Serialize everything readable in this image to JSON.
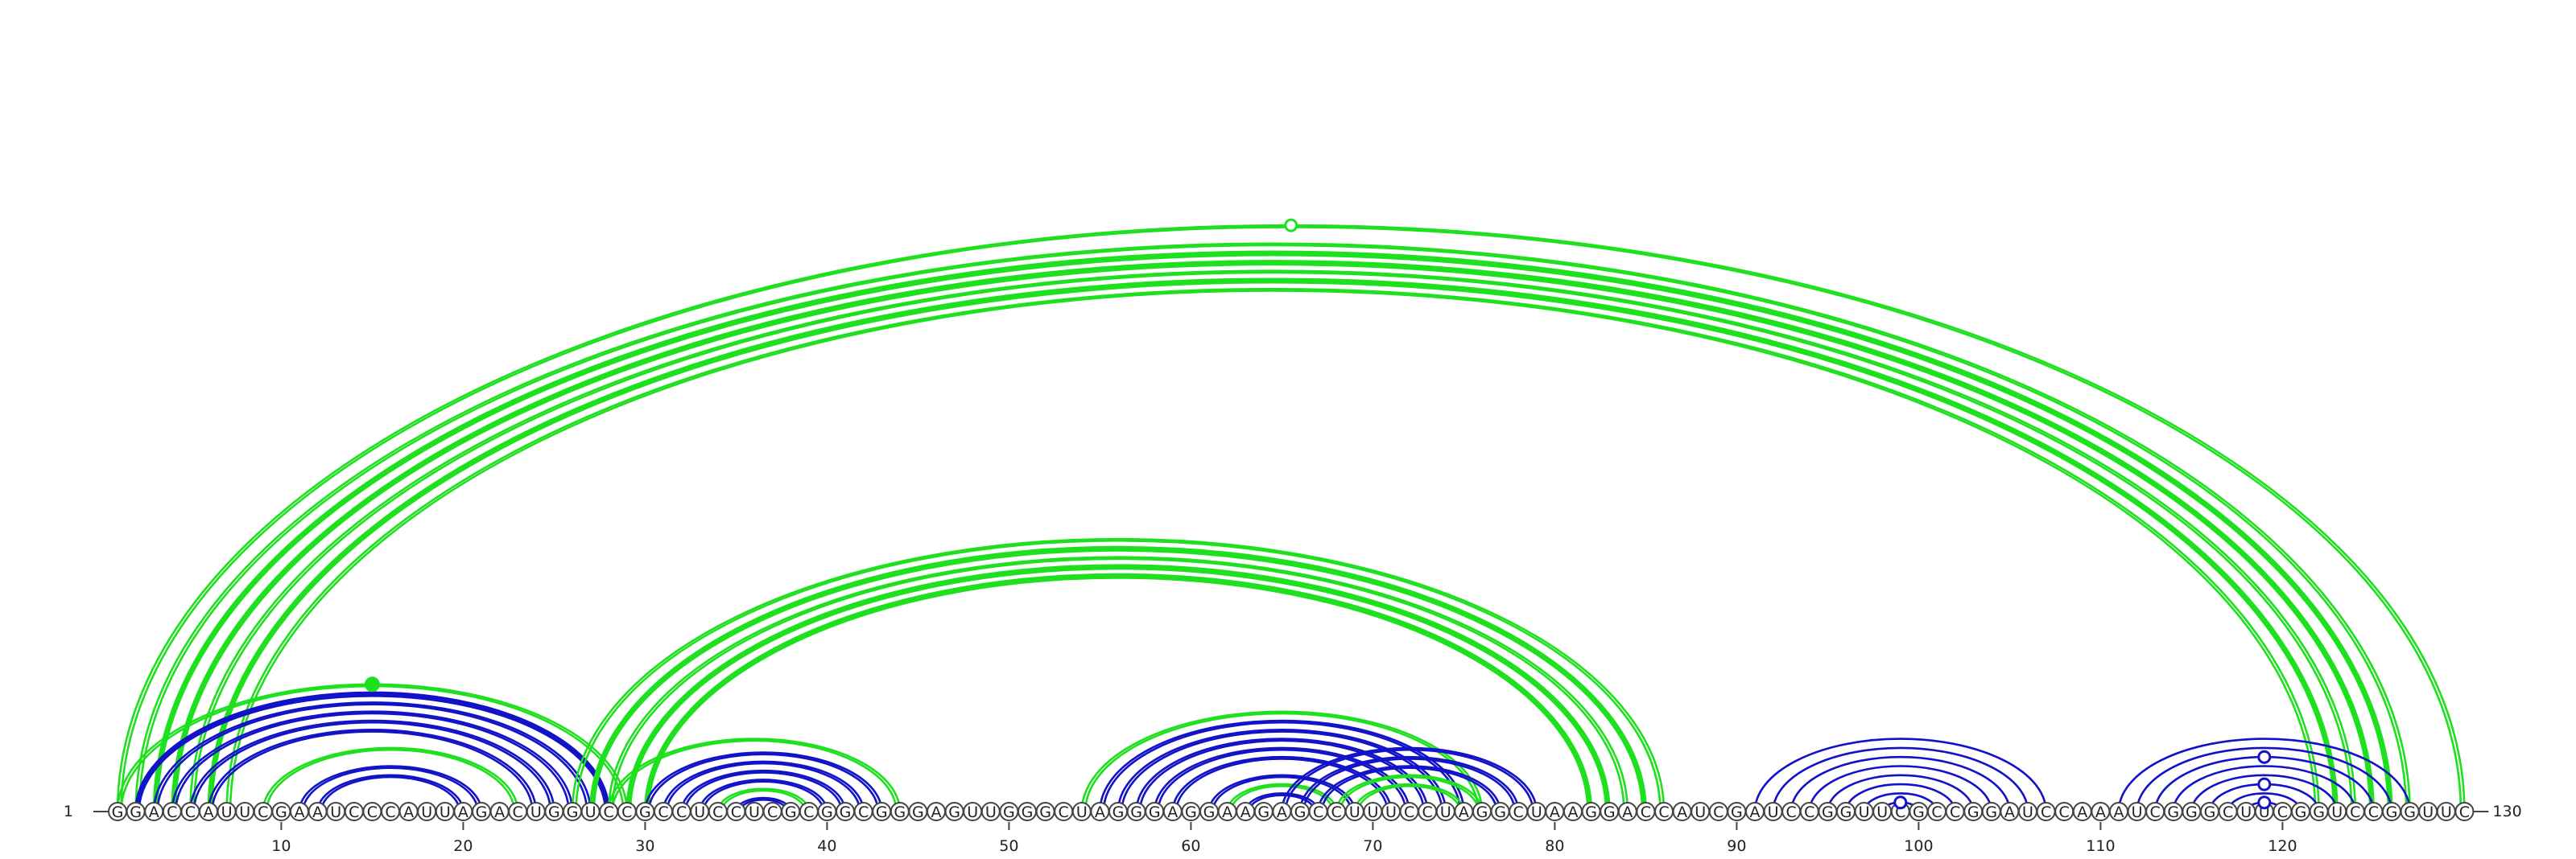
{
  "diagram": {
    "type": "rna-arc-diagram",
    "sequence": "GGACCAUUCGAAUCCCAUUAGACUGGUCCGCCUCCUCGCGGCGGGAGUUGGGCUAGGGAGGAAGAGCCUUUCCUAGGCUAAGGACCAUCGAUCCGGUUCGCCGGAUCCAAAUCGGGCUUCGGUCCGGUUC",
    "start_label": "1",
    "end_label": "130",
    "ticks": [
      "10",
      "20",
      "30",
      "40",
      "50",
      "60",
      "70",
      "80",
      "90",
      "100",
      "110",
      "120"
    ],
    "colors": {
      "green": "#1ee01e",
      "blue": "#1212c8",
      "backbone": "#444444"
    },
    "arcs": [
      {
        "i": 1,
        "j": 130,
        "color": "green",
        "style": "double",
        "marker": "open"
      },
      {
        "i": 2,
        "j": 127,
        "color": "green",
        "style": "double"
      },
      {
        "i": 3,
        "j": 126,
        "color": "green",
        "style": "solid"
      },
      {
        "i": 4,
        "j": 125,
        "color": "green",
        "style": "solid"
      },
      {
        "i": 5,
        "j": 124,
        "color": "green",
        "style": "double"
      },
      {
        "i": 6,
        "j": 123,
        "color": "green",
        "style": "solid"
      },
      {
        "i": 7,
        "j": 122,
        "color": "green",
        "style": "double"
      },
      {
        "i": 1,
        "j": 29,
        "color": "green",
        "style": "double",
        "marker": "filled"
      },
      {
        "i": 2,
        "j": 28,
        "color": "blue",
        "style": "solid"
      },
      {
        "i": 3,
        "j": 27,
        "color": "blue",
        "style": "double"
      },
      {
        "i": 4,
        "j": 26,
        "color": "blue",
        "style": "double"
      },
      {
        "i": 5,
        "j": 25,
        "color": "blue",
        "style": "double"
      },
      {
        "i": 6,
        "j": 24,
        "color": "blue",
        "style": "double"
      },
      {
        "i": 9,
        "j": 23,
        "color": "green",
        "style": "double"
      },
      {
        "i": 11,
        "j": 21,
        "color": "blue",
        "style": "double"
      },
      {
        "i": 12,
        "j": 20,
        "color": "blue",
        "style": "double"
      },
      {
        "i": 26,
        "j": 86,
        "color": "green",
        "style": "double"
      },
      {
        "i": 27,
        "j": 85,
        "color": "green",
        "style": "solid"
      },
      {
        "i": 28,
        "j": 84,
        "color": "green",
        "style": "double"
      },
      {
        "i": 29,
        "j": 83,
        "color": "green",
        "style": "solid"
      },
      {
        "i": 30,
        "j": 82,
        "color": "green",
        "style": "solid"
      },
      {
        "i": 28,
        "j": 44,
        "color": "green",
        "style": "double"
      },
      {
        "i": 30,
        "j": 43,
        "color": "blue",
        "style": "double"
      },
      {
        "i": 31,
        "j": 42,
        "color": "blue",
        "style": "double"
      },
      {
        "i": 32,
        "j": 41,
        "color": "blue",
        "style": "double"
      },
      {
        "i": 33,
        "j": 40,
        "color": "blue",
        "style": "double"
      },
      {
        "i": 34,
        "j": 39,
        "color": "green",
        "style": "double"
      },
      {
        "i": 35,
        "j": 38,
        "color": "blue",
        "style": "double"
      },
      {
        "i": 54,
        "j": 76,
        "color": "green",
        "style": "double"
      },
      {
        "i": 55,
        "j": 75,
        "color": "blue",
        "style": "double"
      },
      {
        "i": 56,
        "j": 74,
        "color": "blue",
        "style": "double"
      },
      {
        "i": 57,
        "j": 73,
        "color": "blue",
        "style": "double"
      },
      {
        "i": 58,
        "j": 72,
        "color": "blue",
        "style": "double"
      },
      {
        "i": 59,
        "j": 71,
        "color": "blue",
        "style": "double"
      },
      {
        "i": 61,
        "j": 69,
        "color": "blue",
        "style": "double"
      },
      {
        "i": 62,
        "j": 68,
        "color": "green",
        "style": "double"
      },
      {
        "i": 63,
        "j": 67,
        "color": "blue",
        "style": "double"
      },
      {
        "i": 65,
        "j": 79,
        "color": "blue",
        "style": "double"
      },
      {
        "i": 66,
        "j": 78,
        "color": "blue",
        "style": "double"
      },
      {
        "i": 67,
        "j": 77,
        "color": "blue",
        "style": "double"
      },
      {
        "i": 68,
        "j": 76,
        "color": "green",
        "style": "double"
      },
      {
        "i": 69,
        "j": 75,
        "color": "green",
        "style": "double"
      },
      {
        "i": 91,
        "j": 107,
        "color": "blue",
        "style": "single"
      },
      {
        "i": 92,
        "j": 106,
        "color": "blue",
        "style": "single"
      },
      {
        "i": 93,
        "j": 105,
        "color": "blue",
        "style": "single"
      },
      {
        "i": 94,
        "j": 104,
        "color": "blue",
        "style": "single"
      },
      {
        "i": 95,
        "j": 103,
        "color": "blue",
        "style": "single"
      },
      {
        "i": 96,
        "j": 102,
        "color": "blue",
        "style": "single"
      },
      {
        "i": 97,
        "j": 101,
        "color": "blue",
        "style": "single"
      },
      {
        "i": 98,
        "j": 100,
        "color": "blue",
        "style": "single",
        "marker": "open"
      },
      {
        "i": 111,
        "j": 127,
        "color": "blue",
        "style": "single"
      },
      {
        "i": 112,
        "j": 126,
        "color": "blue",
        "style": "single"
      },
      {
        "i": 113,
        "j": 125,
        "color": "blue",
        "style": "single",
        "marker": "open"
      },
      {
        "i": 114,
        "j": 124,
        "color": "blue",
        "style": "single"
      },
      {
        "i": 115,
        "j": 123,
        "color": "blue",
        "style": "single"
      },
      {
        "i": 116,
        "j": 122,
        "color": "blue",
        "style": "single",
        "marker": "open"
      },
      {
        "i": 117,
        "j": 121,
        "color": "blue",
        "style": "single"
      },
      {
        "i": 118,
        "j": 120,
        "color": "blue",
        "style": "single",
        "marker": "open"
      }
    ]
  }
}
